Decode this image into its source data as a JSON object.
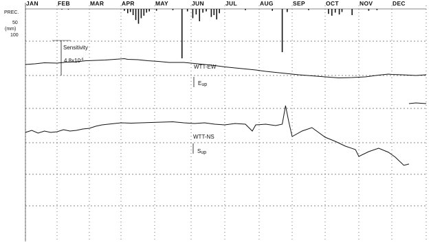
{
  "chart_data": {
    "type": "line",
    "x": {
      "categories": [
        "JAN",
        "FEB",
        "MAR",
        "APR",
        "MAY",
        "JUN",
        "JUL",
        "AUG",
        "SEP",
        "OCT",
        "NOV",
        "DEC"
      ]
    },
    "precipitation": {
      "axis_label": [
        "PREC.",
        "(mm)"
      ],
      "ticks": [
        "50",
        "100"
      ],
      "ylim": [
        0,
        100
      ],
      "bars": [
        {
          "month": 1.15,
          "mm": 2
        },
        {
          "month": 1.35,
          "mm": 2
        },
        {
          "month": 3.1,
          "mm": 6
        },
        {
          "month": 3.2,
          "mm": 14
        },
        {
          "month": 3.28,
          "mm": 10
        },
        {
          "month": 3.36,
          "mm": 20
        },
        {
          "month": 3.44,
          "mm": 36
        },
        {
          "month": 3.52,
          "mm": 48
        },
        {
          "month": 3.6,
          "mm": 30
        },
        {
          "month": 3.68,
          "mm": 22
        },
        {
          "month": 3.76,
          "mm": 12
        },
        {
          "month": 3.84,
          "mm": 8
        },
        {
          "month": 4.05,
          "mm": 6
        },
        {
          "month": 4.5,
          "mm": 4
        },
        {
          "month": 4.75,
          "mm": 160
        },
        {
          "month": 4.9,
          "mm": 8
        },
        {
          "month": 5.05,
          "mm": 30
        },
        {
          "month": 5.15,
          "mm": 18
        },
        {
          "month": 5.25,
          "mm": 40
        },
        {
          "month": 5.35,
          "mm": 12
        },
        {
          "month": 5.45,
          "mm": 8
        },
        {
          "month": 5.6,
          "mm": 26
        },
        {
          "month": 5.68,
          "mm": 20
        },
        {
          "month": 5.76,
          "mm": 34
        },
        {
          "month": 5.84,
          "mm": 14
        },
        {
          "month": 6.6,
          "mm": 4
        },
        {
          "month": 7.4,
          "mm": 6
        },
        {
          "month": 7.7,
          "mm": 140
        },
        {
          "month": 7.85,
          "mm": 10
        },
        {
          "month": 8.5,
          "mm": 4
        },
        {
          "month": 9.1,
          "mm": 16
        },
        {
          "month": 9.2,
          "mm": 22
        },
        {
          "month": 9.3,
          "mm": 12
        },
        {
          "month": 9.42,
          "mm": 18
        },
        {
          "month": 9.5,
          "mm": 10
        },
        {
          "month": 9.8,
          "mm": 20
        },
        {
          "month": 10.3,
          "mm": 6
        },
        {
          "month": 10.55,
          "mm": 4
        }
      ]
    },
    "scale_annotation": {
      "label": "Sensitivity",
      "value": "4.8x10",
      "exponent": "-6"
    },
    "series": [
      {
        "name": "WTT-EW",
        "direction_label": "E",
        "direction_suffix": "up",
        "points": [
          [
            0,
            1.6
          ],
          [
            0.3,
            1.7
          ],
          [
            0.6,
            1.85
          ],
          [
            1.0,
            1.8
          ],
          [
            1.3,
            1.95
          ],
          [
            1.6,
            2.0
          ],
          [
            1.9,
            2.15
          ],
          [
            2.2,
            2.2
          ],
          [
            2.5,
            2.25
          ],
          [
            2.8,
            2.35
          ],
          [
            3.1,
            2.45
          ],
          [
            3.2,
            2.35
          ],
          [
            3.5,
            2.3
          ],
          [
            3.8,
            2.15
          ],
          [
            4.1,
            2.05
          ],
          [
            4.4,
            1.9
          ],
          [
            4.8,
            1.9
          ],
          [
            5.1,
            1.75
          ],
          [
            5.4,
            1.6
          ],
          [
            5.7,
            1.45
          ],
          [
            6.0,
            1.25
          ],
          [
            6.3,
            1.1
          ],
          [
            6.6,
            0.95
          ],
          [
            6.9,
            0.8
          ],
          [
            7.2,
            0.6
          ],
          [
            7.5,
            0.45
          ],
          [
            7.8,
            0.3
          ],
          [
            8.2,
            0.1
          ],
          [
            8.6,
            -0.05
          ],
          [
            9.0,
            -0.2
          ],
          [
            9.4,
            -0.35
          ],
          [
            9.8,
            -0.3
          ],
          [
            10.2,
            -0.2
          ],
          [
            10.6,
            0.05
          ],
          [
            10.9,
            0.2
          ],
          [
            11.0,
            0.15
          ],
          [
            11.3,
            0.1
          ],
          [
            11.7,
            0.0
          ],
          [
            12.0,
            0.1
          ]
        ]
      },
      {
        "name": "WTT-NS",
        "direction_label": "S",
        "direction_suffix": "up",
        "points": [
          [
            0,
            0.0
          ],
          [
            0.2,
            0.3
          ],
          [
            0.4,
            -0.1
          ],
          [
            0.6,
            0.2
          ],
          [
            0.8,
            0.0
          ],
          [
            1.0,
            0.1
          ],
          [
            1.2,
            0.4
          ],
          [
            1.4,
            0.2
          ],
          [
            1.6,
            0.3
          ],
          [
            1.8,
            0.5
          ],
          [
            2.0,
            0.6
          ],
          [
            2.2,
            0.9
          ],
          [
            2.4,
            1.1
          ],
          [
            2.6,
            1.2
          ],
          [
            2.8,
            1.3
          ],
          [
            3.0,
            1.4
          ],
          [
            3.3,
            1.35
          ],
          [
            3.6,
            1.4
          ],
          [
            3.9,
            1.45
          ],
          [
            4.2,
            1.5
          ],
          [
            4.5,
            1.55
          ],
          [
            4.8,
            1.4
          ],
          [
            5.1,
            1.3
          ],
          [
            5.4,
            1.4
          ],
          [
            5.7,
            1.2
          ],
          [
            6.0,
            1.1
          ],
          [
            6.3,
            1.3
          ],
          [
            6.6,
            1.2
          ],
          [
            6.8,
            0.2
          ],
          [
            6.9,
            1.1
          ],
          [
            7.2,
            1.2
          ],
          [
            7.5,
            1.0
          ],
          [
            7.7,
            1.2
          ],
          [
            7.8,
            3.9
          ],
          [
            7.9,
            1.5
          ],
          [
            8.0,
            -0.6
          ],
          [
            8.3,
            0.2
          ],
          [
            8.6,
            0.7
          ],
          [
            9.0,
            -0.7
          ],
          [
            9.3,
            -1.3
          ],
          [
            9.6,
            -2.0
          ],
          [
            9.9,
            -2.5
          ],
          [
            10.0,
            -3.5
          ],
          [
            10.3,
            -2.8
          ],
          [
            10.6,
            -2.3
          ],
          [
            10.9,
            -2.9
          ],
          [
            11.1,
            -3.6
          ],
          [
            11.35,
            -4.8
          ],
          [
            11.5,
            -4.6
          ]
        ]
      }
    ],
    "late_segment": {
      "points": [
        [
          11.5,
          -4.6
        ],
        [
          11.7,
          -4.5
        ],
        [
          12.0,
          -4.6
        ]
      ]
    }
  }
}
